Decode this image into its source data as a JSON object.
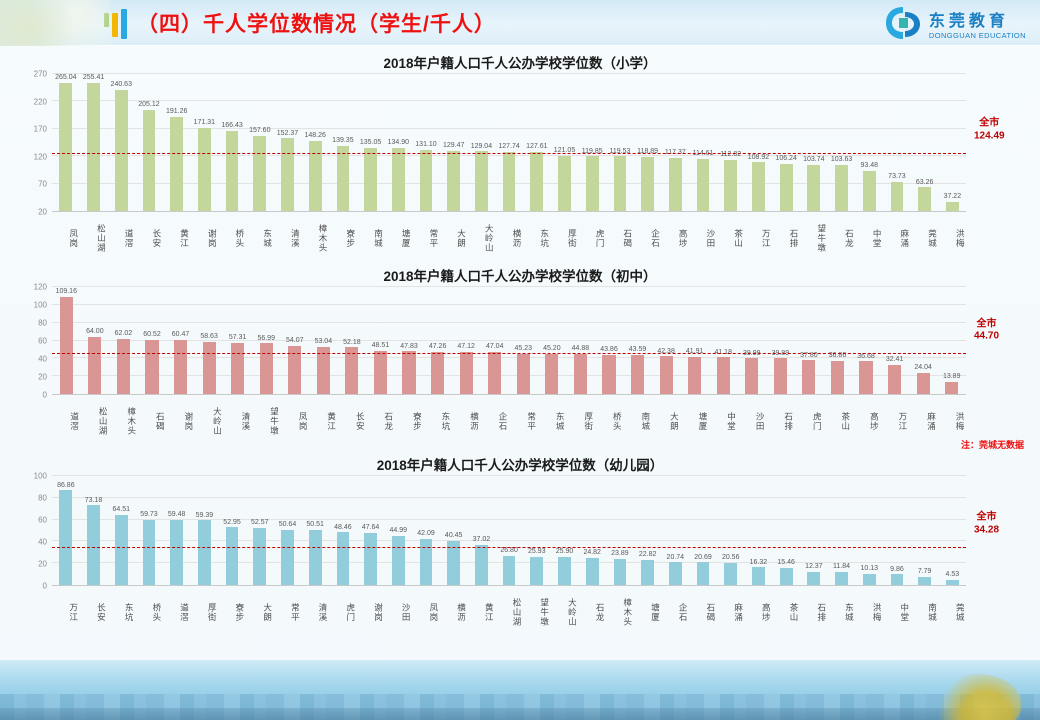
{
  "header": {
    "title": "（四）千人学位数情况（学生/千人）",
    "logo_cn": "东莞教育",
    "logo_en": "DONGGUAN EDUCATION"
  },
  "note": "注：莞城无数据",
  "colors": {
    "title_red": "#ee1111",
    "average_red": "#c00000",
    "logo_blue": "#1b7fc4",
    "accent_green": "#8cc04a",
    "accent_yellow": "#f2b705",
    "accent_blue": "#2aa9e0",
    "bar_primary_school": "#c3d69b",
    "bar_junior_school": "#d99694",
    "bar_kindergarten": "#92cddc"
  },
  "chart_data": [
    {
      "type": "bar",
      "title": "2018年户籍人口千人公办学校学位数（小学）",
      "ylabel": "",
      "xlabel": "",
      "ymin": 20,
      "ymax": 270,
      "yticks": [
        270,
        220,
        170,
        120,
        70,
        20
      ],
      "grid": true,
      "average_label": "全市",
      "average": 124.49,
      "bar_color": "#c3d69b",
      "categories": [
        "凤岗",
        "松山湖",
        "道滘",
        "长安",
        "黄江",
        "谢岗",
        "桥头",
        "东城",
        "清溪",
        "樟木头",
        "寮步",
        "南城",
        "塘厦",
        "常平",
        "大朗",
        "大岭山",
        "横沥",
        "东坑",
        "厚街",
        "虎门",
        "石碣",
        "企石",
        "高埗",
        "沙田",
        "茶山",
        "万江",
        "石排",
        "望牛墩",
        "石龙",
        "中堂",
        "麻涌",
        "莞城",
        "洪梅"
      ],
      "values": [
        265.04,
        255.41,
        240.63,
        205.12,
        191.26,
        171.31,
        166.43,
        157.6,
        152.37,
        148.26,
        139.35,
        135.05,
        134.9,
        131.1,
        129.47,
        129.04,
        127.74,
        127.61,
        121.05,
        119.85,
        119.53,
        118.89,
        117.37,
        114.61,
        112.82,
        108.92,
        106.24,
        103.74,
        103.63,
        93.48,
        73.73,
        63.26,
        37.22
      ]
    },
    {
      "type": "bar",
      "title": "2018年户籍人口千人公办学校学位数（初中）",
      "ylabel": "",
      "xlabel": "",
      "ymin": 0,
      "ymax": 120,
      "yticks": [
        120,
        100,
        80,
        60,
        40,
        20,
        0
      ],
      "grid": true,
      "average_label": "全市",
      "average": 44.7,
      "bar_color": "#d99694",
      "categories": [
        "道滘",
        "松山湖",
        "樟木头",
        "石碣",
        "谢岗",
        "大岭山",
        "清溪",
        "望牛墩",
        "凤岗",
        "黄江",
        "长安",
        "石龙",
        "寮步",
        "东坑",
        "横沥",
        "企石",
        "常平",
        "东城",
        "厚街",
        "桥头",
        "南城",
        "大朗",
        "塘厦",
        "中堂",
        "沙田",
        "石排",
        "虎门",
        "茶山",
        "高埗",
        "万江",
        "麻涌",
        "洪梅"
      ],
      "values": [
        109.16,
        64.0,
        62.02,
        60.52,
        60.47,
        58.63,
        57.31,
        56.99,
        54.07,
        53.04,
        52.18,
        48.51,
        47.83,
        47.26,
        47.12,
        47.04,
        45.23,
        45.2,
        44.88,
        43.86,
        43.59,
        42.38,
        41.91,
        41.18,
        39.99,
        39.89,
        37.8,
        36.86,
        36.68,
        32.41,
        24.04,
        13.89
      ]
    },
    {
      "type": "bar",
      "title": "2018年户籍人口千人公办学校学位数（幼儿园）",
      "ylabel": "",
      "xlabel": "",
      "ymin": 0,
      "ymax": 100,
      "yticks": [
        100,
        80,
        60,
        40,
        20,
        0
      ],
      "grid": true,
      "average_label": "全市",
      "average": 34.28,
      "bar_color": "#92cddc",
      "categories": [
        "万江",
        "长安",
        "东坑",
        "桥头",
        "道滘",
        "厚街",
        "寮步",
        "大朗",
        "常平",
        "清溪",
        "虎门",
        "谢岗",
        "沙田",
        "凤岗",
        "横沥",
        "黄江",
        "松山湖",
        "望牛墩",
        "大岭山",
        "石龙",
        "樟木头",
        "塘厦",
        "企石",
        "石碣",
        "麻涌",
        "高埗",
        "茶山",
        "石排",
        "东城",
        "洪梅",
        "中堂",
        "南城",
        "莞城"
      ],
      "values": [
        86.86,
        73.18,
        64.51,
        59.73,
        59.48,
        59.39,
        52.95,
        52.57,
        50.64,
        50.51,
        48.46,
        47.64,
        44.99,
        42.09,
        40.45,
        37.02,
        26.8,
        25.93,
        25.9,
        24.82,
        23.89,
        22.82,
        20.74,
        20.69,
        20.56,
        16.32,
        15.46,
        12.37,
        11.84,
        10.13,
        9.86,
        7.79,
        4.53
      ]
    }
  ]
}
